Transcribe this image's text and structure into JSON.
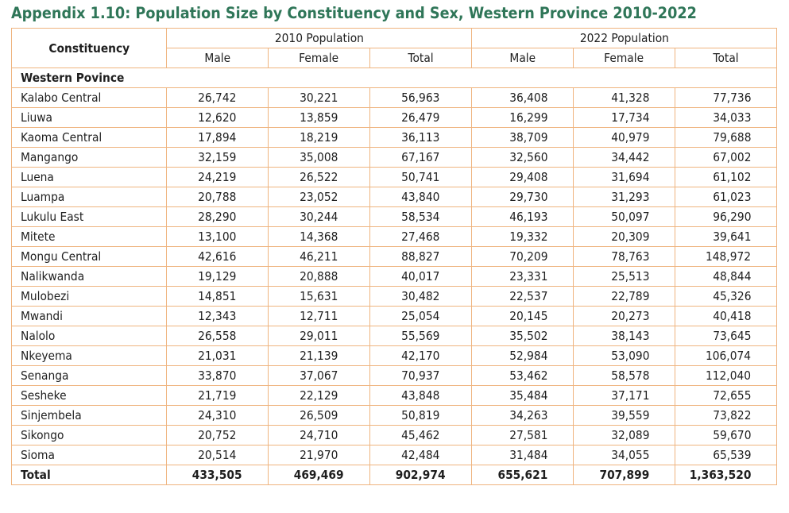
{
  "title": "Appendix 1.10: Population Size by Constituency and Sex, Western Province 2010-2022",
  "table": {
    "header": {
      "constituency": "Constituency",
      "groups": [
        "2010 Population",
        "2022 Population"
      ],
      "subcolumns": [
        "Male",
        "Female",
        "Total",
        "Male",
        "Female",
        "Total"
      ]
    },
    "section_label": "Western Povince",
    "rows": [
      {
        "name": "Kalabo Central",
        "values": [
          "26,742",
          "30,221",
          "56,963",
          "36,408",
          "41,328",
          "77,736"
        ]
      },
      {
        "name": "Liuwa",
        "values": [
          "12,620",
          "13,859",
          "26,479",
          "16,299",
          "17,734",
          "34,033"
        ]
      },
      {
        "name": "Kaoma Central",
        "values": [
          "17,894",
          "18,219",
          "36,113",
          "38,709",
          "40,979",
          "79,688"
        ]
      },
      {
        "name": "Mangango",
        "values": [
          "32,159",
          "35,008",
          "67,167",
          "32,560",
          "34,442",
          "67,002"
        ]
      },
      {
        "name": "Luena",
        "values": [
          "24,219",
          "26,522",
          "50,741",
          "29,408",
          "31,694",
          "61,102"
        ]
      },
      {
        "name": "Luampa",
        "values": [
          "20,788",
          "23,052",
          "43,840",
          "29,730",
          "31,293",
          "61,023"
        ]
      },
      {
        "name": "Lukulu East",
        "values": [
          "28,290",
          "30,244",
          "58,534",
          "46,193",
          "50,097",
          "96,290"
        ]
      },
      {
        "name": "Mitete",
        "values": [
          "13,100",
          "14,368",
          "27,468",
          "19,332",
          "20,309",
          "39,641"
        ]
      },
      {
        "name": "Mongu Central",
        "values": [
          "42,616",
          "46,211",
          "88,827",
          "70,209",
          "78,763",
          "148,972"
        ]
      },
      {
        "name": "Nalikwanda",
        "values": [
          "19,129",
          "20,888",
          "40,017",
          "23,331",
          "25,513",
          "48,844"
        ]
      },
      {
        "name": "Mulobezi",
        "values": [
          "14,851",
          "15,631",
          "30,482",
          "22,537",
          "22,789",
          "45,326"
        ]
      },
      {
        "name": "Mwandi",
        "values": [
          "12,343",
          "12,711",
          "25,054",
          "20,145",
          "20,273",
          "40,418"
        ]
      },
      {
        "name": "Nalolo",
        "values": [
          "26,558",
          "29,011",
          "55,569",
          "35,502",
          "38,143",
          "73,645"
        ]
      },
      {
        "name": "Nkeyema",
        "values": [
          "21,031",
          "21,139",
          "42,170",
          "52,984",
          "53,090",
          "106,074"
        ]
      },
      {
        "name": "Senanga",
        "values": [
          "33,870",
          "37,067",
          "70,937",
          "53,462",
          "58,578",
          "112,040"
        ]
      },
      {
        "name": "Sesheke",
        "values": [
          "21,719",
          "22,129",
          "43,848",
          "35,484",
          "37,171",
          "72,655"
        ]
      },
      {
        "name": "Sinjembela",
        "values": [
          "24,310",
          "26,509",
          "50,819",
          "34,263",
          "39,559",
          "73,822"
        ]
      },
      {
        "name": "Sikongo",
        "values": [
          "20,752",
          "24,710",
          "45,462",
          "27,581",
          "32,089",
          "59,670"
        ]
      },
      {
        "name": "Sioma",
        "values": [
          "20,514",
          "21,970",
          "42,484",
          "31,484",
          "34,055",
          "65,539"
        ]
      }
    ],
    "total": {
      "name": "Total",
      "values": [
        "433,505",
        "469,469",
        "902,974",
        "655,621",
        "707,899",
        "1,363,520"
      ]
    }
  },
  "colors": {
    "title": "#2f7658",
    "border": "#efb47f",
    "text": "#1e1e1e"
  }
}
